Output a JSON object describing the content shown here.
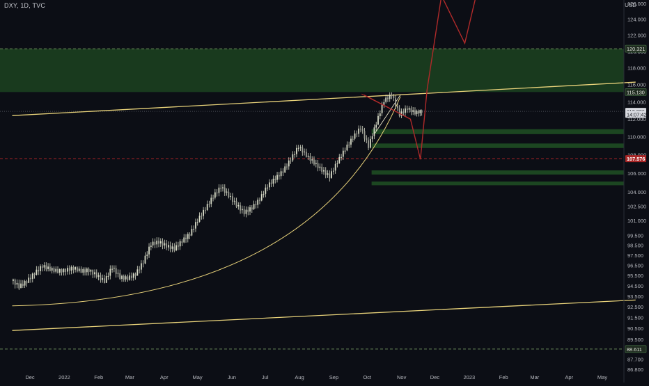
{
  "header": {
    "symbol": "DXY, 1D, TVC",
    "currency": "USD"
  },
  "colors": {
    "background": "#0c0e15",
    "candle": "#d9dcc8",
    "zone": "#1e4a22",
    "zone_border": "#3a7a3e",
    "trendline": "#e8d27a",
    "projection": "#b02a2a",
    "price_tag_dark": "#1f2b20",
    "price_tag_red": "#a82626",
    "axis_text": "#b8bac0"
  },
  "chart_data": {
    "type": "candlestick",
    "title": "",
    "xlabel": "",
    "ylabel": "",
    "x_ticks": [
      "Dec",
      "2022",
      "Feb",
      "Mar",
      "Apr",
      "May",
      "Jun",
      "Jul",
      "Aug",
      "Sep",
      "Oct",
      "Nov",
      "Dec",
      "2023",
      "Feb",
      "Mar",
      "Apr",
      "May"
    ],
    "y_ticks": [
      "126.000",
      "124.000",
      "122.000",
      "120.000",
      "118.000",
      "116.000",
      "114.000",
      "112.000",
      "110.000",
      "108.000",
      "106.000",
      "104.000",
      "102.500",
      "101.000",
      "99.500",
      "98.500",
      "97.500",
      "96.500",
      "95.500",
      "94.500",
      "93.500",
      "92.500",
      "91.500",
      "90.500",
      "89.500",
      "88.500",
      "87.700",
      "86.800"
    ],
    "y_scale": "log",
    "price_tags": [
      {
        "label": "120.321",
        "value": 120.321,
        "style": "dark"
      },
      {
        "label": "115.130",
        "value": 115.13,
        "style": "dark"
      },
      {
        "label": "112.886",
        "value": 112.886,
        "style": "light"
      },
      {
        "label": "14:07:42",
        "value": 112.55,
        "style": "light"
      },
      {
        "label": "107.576",
        "value": 107.576,
        "style": "red"
      },
      {
        "label": "88.611",
        "value": 88.611,
        "style": "dark"
      }
    ],
    "zones": [
      {
        "name": "",
        "top": 120.321,
        "bottom": 115.13
      },
      {
        "name": "",
        "top": 110.85,
        "bottom": 110.3
      },
      {
        "name": "",
        "top": 109.25,
        "bottom": 108.75
      },
      {
        "name": "",
        "top": 106.3,
        "bottom": 105.85
      },
      {
        "name": "",
        "top": 105.1,
        "bottom": 104.7
      }
    ],
    "horizontal_lines": [
      120.321,
      107.576,
      88.611
    ],
    "trendlines": [
      {
        "from": [
          "2021-11-15",
          112.4
        ],
        "to": [
          "2023-05-31",
          116.3
        ]
      },
      {
        "from": [
          "2021-11-15",
          90.3
        ],
        "to": [
          "2023-05-31",
          93.15
        ]
      }
    ],
    "curve": {
      "from": [
        "2021-11-15",
        92.6
      ],
      "to": [
        "2022-10-31",
        114.6
      ]
    },
    "projection": [
      [
        "2022-09-28",
        114.8
      ],
      [
        "2022-11-09",
        112.0
      ],
      [
        "2022-11-18",
        107.5
      ],
      [
        "2022-11-24",
        115.4
      ],
      [
        "2022-12-07",
        127.0
      ],
      [
        "2022-12-28",
        121.0
      ],
      [
        "2023-01-08",
        127.5
      ]
    ],
    "series": [
      {
        "name": "",
        "ohlc": [
          [
            "2021-11-15",
            95.1,
            95.2,
            94.1,
            94.4
          ],
          [
            "2021-11-22",
            94.4,
            95.1,
            94.3,
            94.9
          ],
          [
            "2021-11-29",
            94.9,
            95.8,
            94.8,
            95.7
          ],
          [
            "2021-12-06",
            95.7,
            96.6,
            95.5,
            96.4
          ],
          [
            "2021-12-13",
            96.4,
            96.8,
            95.9,
            96.1
          ],
          [
            "2021-12-20",
            96.1,
            96.4,
            95.7,
            95.9
          ],
          [
            "2021-12-27",
            95.9,
            96.2,
            95.5,
            96.0
          ],
          [
            "2022-01-03",
            96.0,
            96.5,
            95.6,
            96.2
          ],
          [
            "2022-01-10",
            96.2,
            96.4,
            95.8,
            95.9
          ],
          [
            "2022-01-17",
            95.9,
            96.3,
            95.5,
            96.0
          ],
          [
            "2022-01-24",
            96.0,
            96.1,
            95.2,
            95.5
          ],
          [
            "2022-01-31",
            95.5,
            95.8,
            94.8,
            94.9
          ],
          [
            "2022-02-07",
            94.9,
            96.6,
            94.8,
            96.3
          ],
          [
            "2022-02-14",
            96.3,
            96.5,
            95.1,
            95.3
          ],
          [
            "2022-02-21",
            95.3,
            95.6,
            94.9,
            95.2
          ],
          [
            "2022-02-28",
            95.2,
            95.8,
            95.0,
            95.6
          ],
          [
            "2022-03-07",
            95.6,
            97.0,
            95.5,
            96.8
          ],
          [
            "2022-03-14",
            96.8,
            98.8,
            96.6,
            98.6
          ],
          [
            "2022-03-21",
            98.6,
            99.4,
            98.2,
            98.8
          ],
          [
            "2022-03-28",
            98.8,
            99.2,
            98.0,
            98.4
          ],
          [
            "2022-04-04",
            98.4,
            98.9,
            97.8,
            98.1
          ],
          [
            "2022-04-11",
            98.1,
            99.1,
            97.9,
            98.9
          ],
          [
            "2022-04-18",
            98.9,
            99.8,
            98.7,
            99.6
          ],
          [
            "2022-04-25",
            99.6,
            101.2,
            99.4,
            101.0
          ],
          [
            "2022-05-02",
            101.0,
            102.4,
            100.8,
            102.2
          ],
          [
            "2022-05-09",
            102.2,
            103.8,
            102.0,
            103.5
          ],
          [
            "2022-05-16",
            103.5,
            104.9,
            103.2,
            104.5
          ],
          [
            "2022-05-23",
            104.5,
            104.8,
            103.3,
            103.6
          ],
          [
            "2022-05-30",
            103.6,
            103.9,
            102.3,
            102.6
          ],
          [
            "2022-06-06",
            102.6,
            102.9,
            101.4,
            101.8
          ],
          [
            "2022-06-13",
            101.8,
            102.6,
            101.2,
            102.3
          ],
          [
            "2022-06-20",
            102.3,
            103.4,
            102.1,
            103.2
          ],
          [
            "2022-06-27",
            103.2,
            104.8,
            103.0,
            104.6
          ],
          [
            "2022-07-04",
            104.6,
            105.8,
            104.2,
            105.4
          ],
          [
            "2022-07-11",
            105.4,
            106.6,
            105.0,
            106.2
          ],
          [
            "2022-07-18",
            106.2,
            107.8,
            106.0,
            107.5
          ],
          [
            "2022-07-25",
            107.5,
            109.3,
            107.2,
            108.9
          ],
          [
            "2022-08-01",
            108.9,
            109.1,
            107.7,
            107.9
          ],
          [
            "2022-08-08",
            107.9,
            108.2,
            106.8,
            107.1
          ],
          [
            "2022-08-15",
            107.1,
            107.6,
            105.9,
            106.3
          ],
          [
            "2022-08-22",
            106.3,
            106.7,
            104.8,
            105.6
          ],
          [
            "2022-08-29",
            105.6,
            107.4,
            105.4,
            107.2
          ],
          [
            "2022-09-05",
            107.2,
            108.8,
            107.0,
            108.6
          ],
          [
            "2022-09-12",
            108.6,
            110.2,
            108.4,
            109.9
          ],
          [
            "2022-09-19",
            109.9,
            111.3,
            109.6,
            111.0
          ],
          [
            "2022-09-26",
            111.0,
            111.5,
            108.5,
            108.9
          ],
          [
            "2022-10-03",
            108.9,
            111.8,
            108.7,
            111.5
          ],
          [
            "2022-10-10",
            111.5,
            114.4,
            111.3,
            114.1
          ],
          [
            "2022-10-17",
            114.1,
            115.1,
            113.8,
            114.8
          ],
          [
            "2022-10-24",
            114.8,
            114.9,
            112.2,
            112.5
          ],
          [
            "2022-10-31",
            112.5,
            113.6,
            112.1,
            113.2
          ],
          [
            "2022-11-07",
            113.2,
            113.5,
            112.4,
            112.7
          ],
          [
            "2022-11-14",
            112.7,
            113.1,
            112.3,
            112.886
          ]
        ]
      }
    ]
  }
}
